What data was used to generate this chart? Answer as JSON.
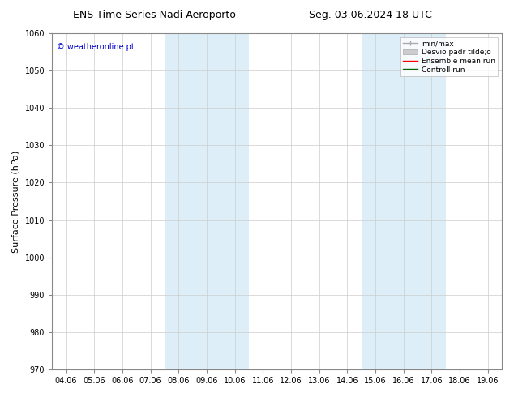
{
  "title_left": "ENS Time Series Nadi Aeroporto",
  "title_right": "Seg. 03.06.2024 18 UTC",
  "ylabel": "Surface Pressure (hPa)",
  "ylim": [
    970,
    1060
  ],
  "yticks": [
    970,
    980,
    990,
    1000,
    1010,
    1020,
    1030,
    1040,
    1050,
    1060
  ],
  "xtick_labels": [
    "04.06",
    "05.06",
    "06.06",
    "07.06",
    "08.06",
    "09.06",
    "10.06",
    "11.06",
    "12.06",
    "13.06",
    "14.06",
    "15.06",
    "16.06",
    "17.06",
    "18.06",
    "19.06"
  ],
  "shaded_color": "#ddeef8",
  "background_color": "#ffffff",
  "watermark": "© weatheronline.pt",
  "watermark_color": "#0000cc",
  "title_fontsize": 9,
  "tick_fontsize": 7,
  "ylabel_fontsize": 8,
  "watermark_fontsize": 7,
  "legend_fontsize": 6.5
}
